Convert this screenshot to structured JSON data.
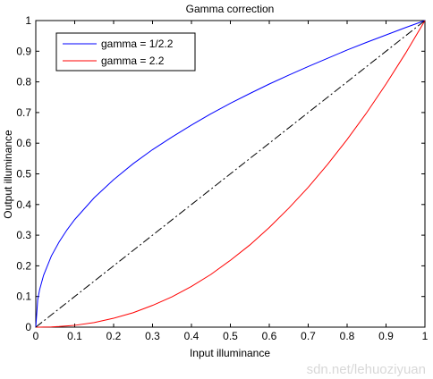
{
  "chart_data": {
    "type": "line",
    "title": "Gamma correction",
    "xlabel": "Input illuminance",
    "ylabel": "Output illuminance",
    "xlim": [
      0,
      1
    ],
    "ylim": [
      0,
      1
    ],
    "grid": false,
    "legend_position": "top-left",
    "xticks": [
      0,
      0.1,
      0.2,
      0.3,
      0.4,
      0.5,
      0.6,
      0.7,
      0.8,
      0.9,
      1
    ],
    "xtick_labels": [
      "0",
      "0.1",
      "0.2",
      "0.3",
      "0.4",
      "0.5",
      "0.6",
      "0.7",
      "0.8",
      "0.9",
      "1"
    ],
    "yticks": [
      0,
      0.1,
      0.2,
      0.3,
      0.4,
      0.5,
      0.6,
      0.7,
      0.8,
      0.9,
      1
    ],
    "ytick_labels": [
      "0",
      "0.1",
      "0.2",
      "0.3",
      "0.4",
      "0.5",
      "0.6",
      "0.7",
      "0.8",
      "0.9",
      "1"
    ],
    "x": [
      0,
      0.005,
      0.01,
      0.02,
      0.04,
      0.06,
      0.08,
      0.1,
      0.15,
      0.2,
      0.25,
      0.3,
      0.35,
      0.4,
      0.45,
      0.5,
      0.55,
      0.6,
      0.65,
      0.7,
      0.75,
      0.8,
      0.85,
      0.9,
      0.95,
      1
    ],
    "series": [
      {
        "name": "gamma = 1/2.2",
        "color": "#0000ff",
        "style": "solid",
        "values": [
          0,
          0.09,
          0.123,
          0.169,
          0.232,
          0.278,
          0.317,
          0.351,
          0.422,
          0.481,
          0.533,
          0.579,
          0.62,
          0.659,
          0.696,
          0.73,
          0.762,
          0.793,
          0.822,
          0.85,
          0.877,
          0.904,
          0.929,
          0.953,
          0.977,
          1
        ]
      },
      {
        "name": "gamma = 2.2",
        "color": "#ff0000",
        "style": "solid",
        "values": [
          0,
          0,
          0,
          0.0002,
          0.0008,
          0.002,
          0.004,
          0.006,
          0.015,
          0.029,
          0.047,
          0.071,
          0.099,
          0.133,
          0.172,
          0.218,
          0.268,
          0.325,
          0.388,
          0.456,
          0.531,
          0.612,
          0.699,
          0.793,
          0.893,
          1
        ]
      },
      {
        "name": "",
        "color": "#000000",
        "style": "dashdot",
        "values": [
          0,
          0.005,
          0.01,
          0.02,
          0.04,
          0.06,
          0.08,
          0.1,
          0.15,
          0.2,
          0.25,
          0.3,
          0.35,
          0.4,
          0.45,
          0.5,
          0.55,
          0.6,
          0.65,
          0.7,
          0.75,
          0.8,
          0.85,
          0.9,
          0.95,
          1
        ]
      }
    ]
  },
  "watermark": "sdn.net/lehuoziyuan"
}
